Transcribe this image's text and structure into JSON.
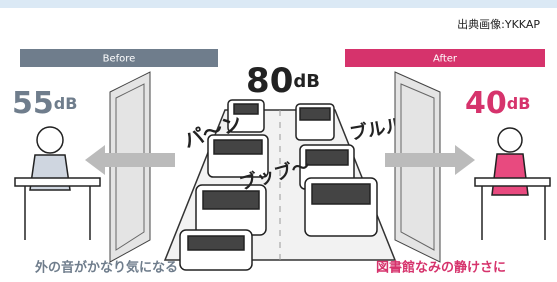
{
  "source": "出典画像:YKKAP",
  "before": {
    "label": "Before",
    "level": {
      "value": "55",
      "unit": "dB"
    },
    "caption": "外の音がかなり気になる"
  },
  "after": {
    "label": "After",
    "level": {
      "value": "40",
      "unit": "dB"
    },
    "caption": "図書館なみの静けさに"
  },
  "road": {
    "level": {
      "value": "80",
      "unit": "dB"
    },
    "sounds": [
      "パ〜ン",
      "ブッブ〜",
      "ブルル"
    ]
  }
}
